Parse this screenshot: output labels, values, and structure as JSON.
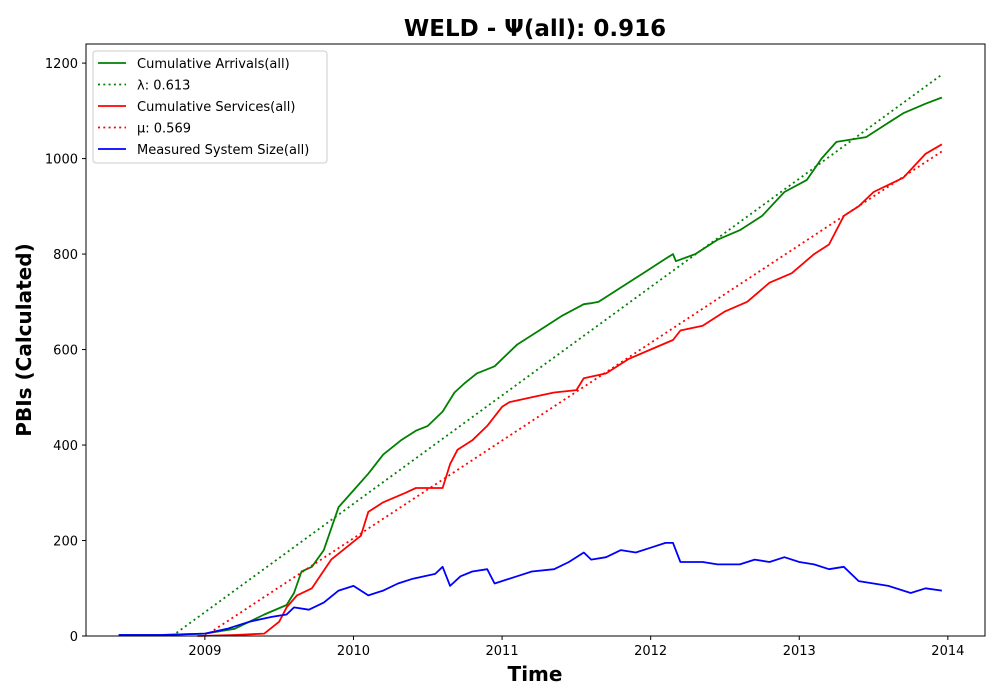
{
  "chart_data": {
    "type": "line",
    "title": "WELD -  Ψ(all): 0.916",
    "xlabel": "Time",
    "ylabel": "PBIs (Calculated)",
    "xlim": [
      2008.2,
      2014.25
    ],
    "ylim": [
      0,
      1240
    ],
    "x_ticks": [
      2009,
      2010,
      2011,
      2012,
      2013,
      2014
    ],
    "y_ticks": [
      0,
      200,
      400,
      600,
      800,
      1000,
      1200
    ],
    "grid": false,
    "legend_position": "upper-left",
    "series": [
      {
        "name": "Cumulative Arrivals(all)",
        "color": "#008000",
        "style": "solid",
        "x": [
          2008.42,
          2008.7,
          2009.0,
          2009.2,
          2009.4,
          2009.55,
          2009.6,
          2009.65,
          2009.72,
          2009.8,
          2009.9,
          2010.0,
          2010.1,
          2010.2,
          2010.32,
          2010.42,
          2010.5,
          2010.6,
          2010.68,
          2010.75,
          2010.83,
          2010.95,
          2011.1,
          2011.25,
          2011.4,
          2011.55,
          2011.6,
          2011.65,
          2011.8,
          2011.95,
          2012.1,
          2012.15,
          2012.17,
          2012.3,
          2012.45,
          2012.6,
          2012.75,
          2012.9,
          2013.05,
          2013.15,
          2013.25,
          2013.35,
          2013.45,
          2013.55,
          2013.7,
          2013.85,
          2013.96
        ],
        "y": [
          2,
          2,
          5,
          15,
          45,
          65,
          90,
          135,
          145,
          180,
          270,
          305,
          340,
          380,
          410,
          430,
          440,
          470,
          510,
          530,
          550,
          565,
          610,
          640,
          670,
          695,
          697,
          700,
          730,
          760,
          790,
          800,
          785,
          800,
          830,
          850,
          880,
          930,
          955,
          1000,
          1035,
          1040,
          1045,
          1065,
          1095,
          1115,
          1128
        ]
      },
      {
        "name": "λ: 0.613",
        "color": "#008000",
        "style": "dotted",
        "x": [
          2008.78,
          2013.96
        ],
        "y": [
          0,
          1176
        ]
      },
      {
        "name": "Cumulative Services(all)",
        "color": "#ff0000",
        "style": "solid",
        "x": [
          2008.95,
          2009.2,
          2009.4,
          2009.5,
          2009.55,
          2009.62,
          2009.72,
          2009.85,
          2009.95,
          2010.05,
          2010.1,
          2010.2,
          2010.35,
          2010.42,
          2010.6,
          2010.65,
          2010.7,
          2010.8,
          2010.9,
          2011.0,
          2011.05,
          2011.2,
          2011.35,
          2011.5,
          2011.55,
          2011.7,
          2011.85,
          2012.0,
          2012.15,
          2012.2,
          2012.35,
          2012.5,
          2012.65,
          2012.8,
          2012.95,
          2013.1,
          2013.2,
          2013.3,
          2013.4,
          2013.5,
          2013.7,
          2013.85,
          2013.96
        ],
        "y": [
          0,
          2,
          5,
          30,
          60,
          85,
          100,
          160,
          185,
          210,
          260,
          280,
          300,
          310,
          310,
          360,
          390,
          410,
          440,
          480,
          490,
          500,
          510,
          515,
          540,
          550,
          580,
          600,
          620,
          640,
          650,
          680,
          700,
          740,
          760,
          800,
          820,
          880,
          900,
          930,
          960,
          1010,
          1030
        ]
      },
      {
        "name": "μ: 0.569",
        "color": "#ff0000",
        "style": "dotted",
        "x": [
          2009.0,
          2013.96
        ],
        "y": [
          0,
          1015
        ]
      },
      {
        "name": "Measured System Size(all)",
        "color": "#0000ff",
        "style": "solid",
        "x": [
          2008.42,
          2008.7,
          2009.0,
          2009.15,
          2009.3,
          2009.45,
          2009.55,
          2009.6,
          2009.7,
          2009.8,
          2009.9,
          2010.0,
          2010.1,
          2010.2,
          2010.3,
          2010.4,
          2010.55,
          2010.6,
          2010.65,
          2010.72,
          2010.8,
          2010.9,
          2010.95,
          2011.1,
          2011.2,
          2011.35,
          2011.45,
          2011.55,
          2011.6,
          2011.7,
          2011.8,
          2011.9,
          2012.0,
          2012.1,
          2012.15,
          2012.2,
          2012.35,
          2012.45,
          2012.6,
          2012.7,
          2012.8,
          2012.9,
          2013.0,
          2013.1,
          2013.2,
          2013.3,
          2013.4,
          2013.5,
          2013.6,
          2013.75,
          2013.85,
          2013.96
        ],
        "y": [
          2,
          2,
          5,
          15,
          30,
          40,
          45,
          60,
          55,
          70,
          95,
          105,
          85,
          95,
          110,
          120,
          130,
          145,
          105,
          125,
          135,
          140,
          110,
          125,
          135,
          140,
          155,
          175,
          160,
          165,
          180,
          175,
          185,
          195,
          195,
          155,
          155,
          150,
          150,
          160,
          155,
          165,
          155,
          150,
          140,
          145,
          115,
          110,
          105,
          90,
          100,
          95
        ]
      }
    ]
  }
}
